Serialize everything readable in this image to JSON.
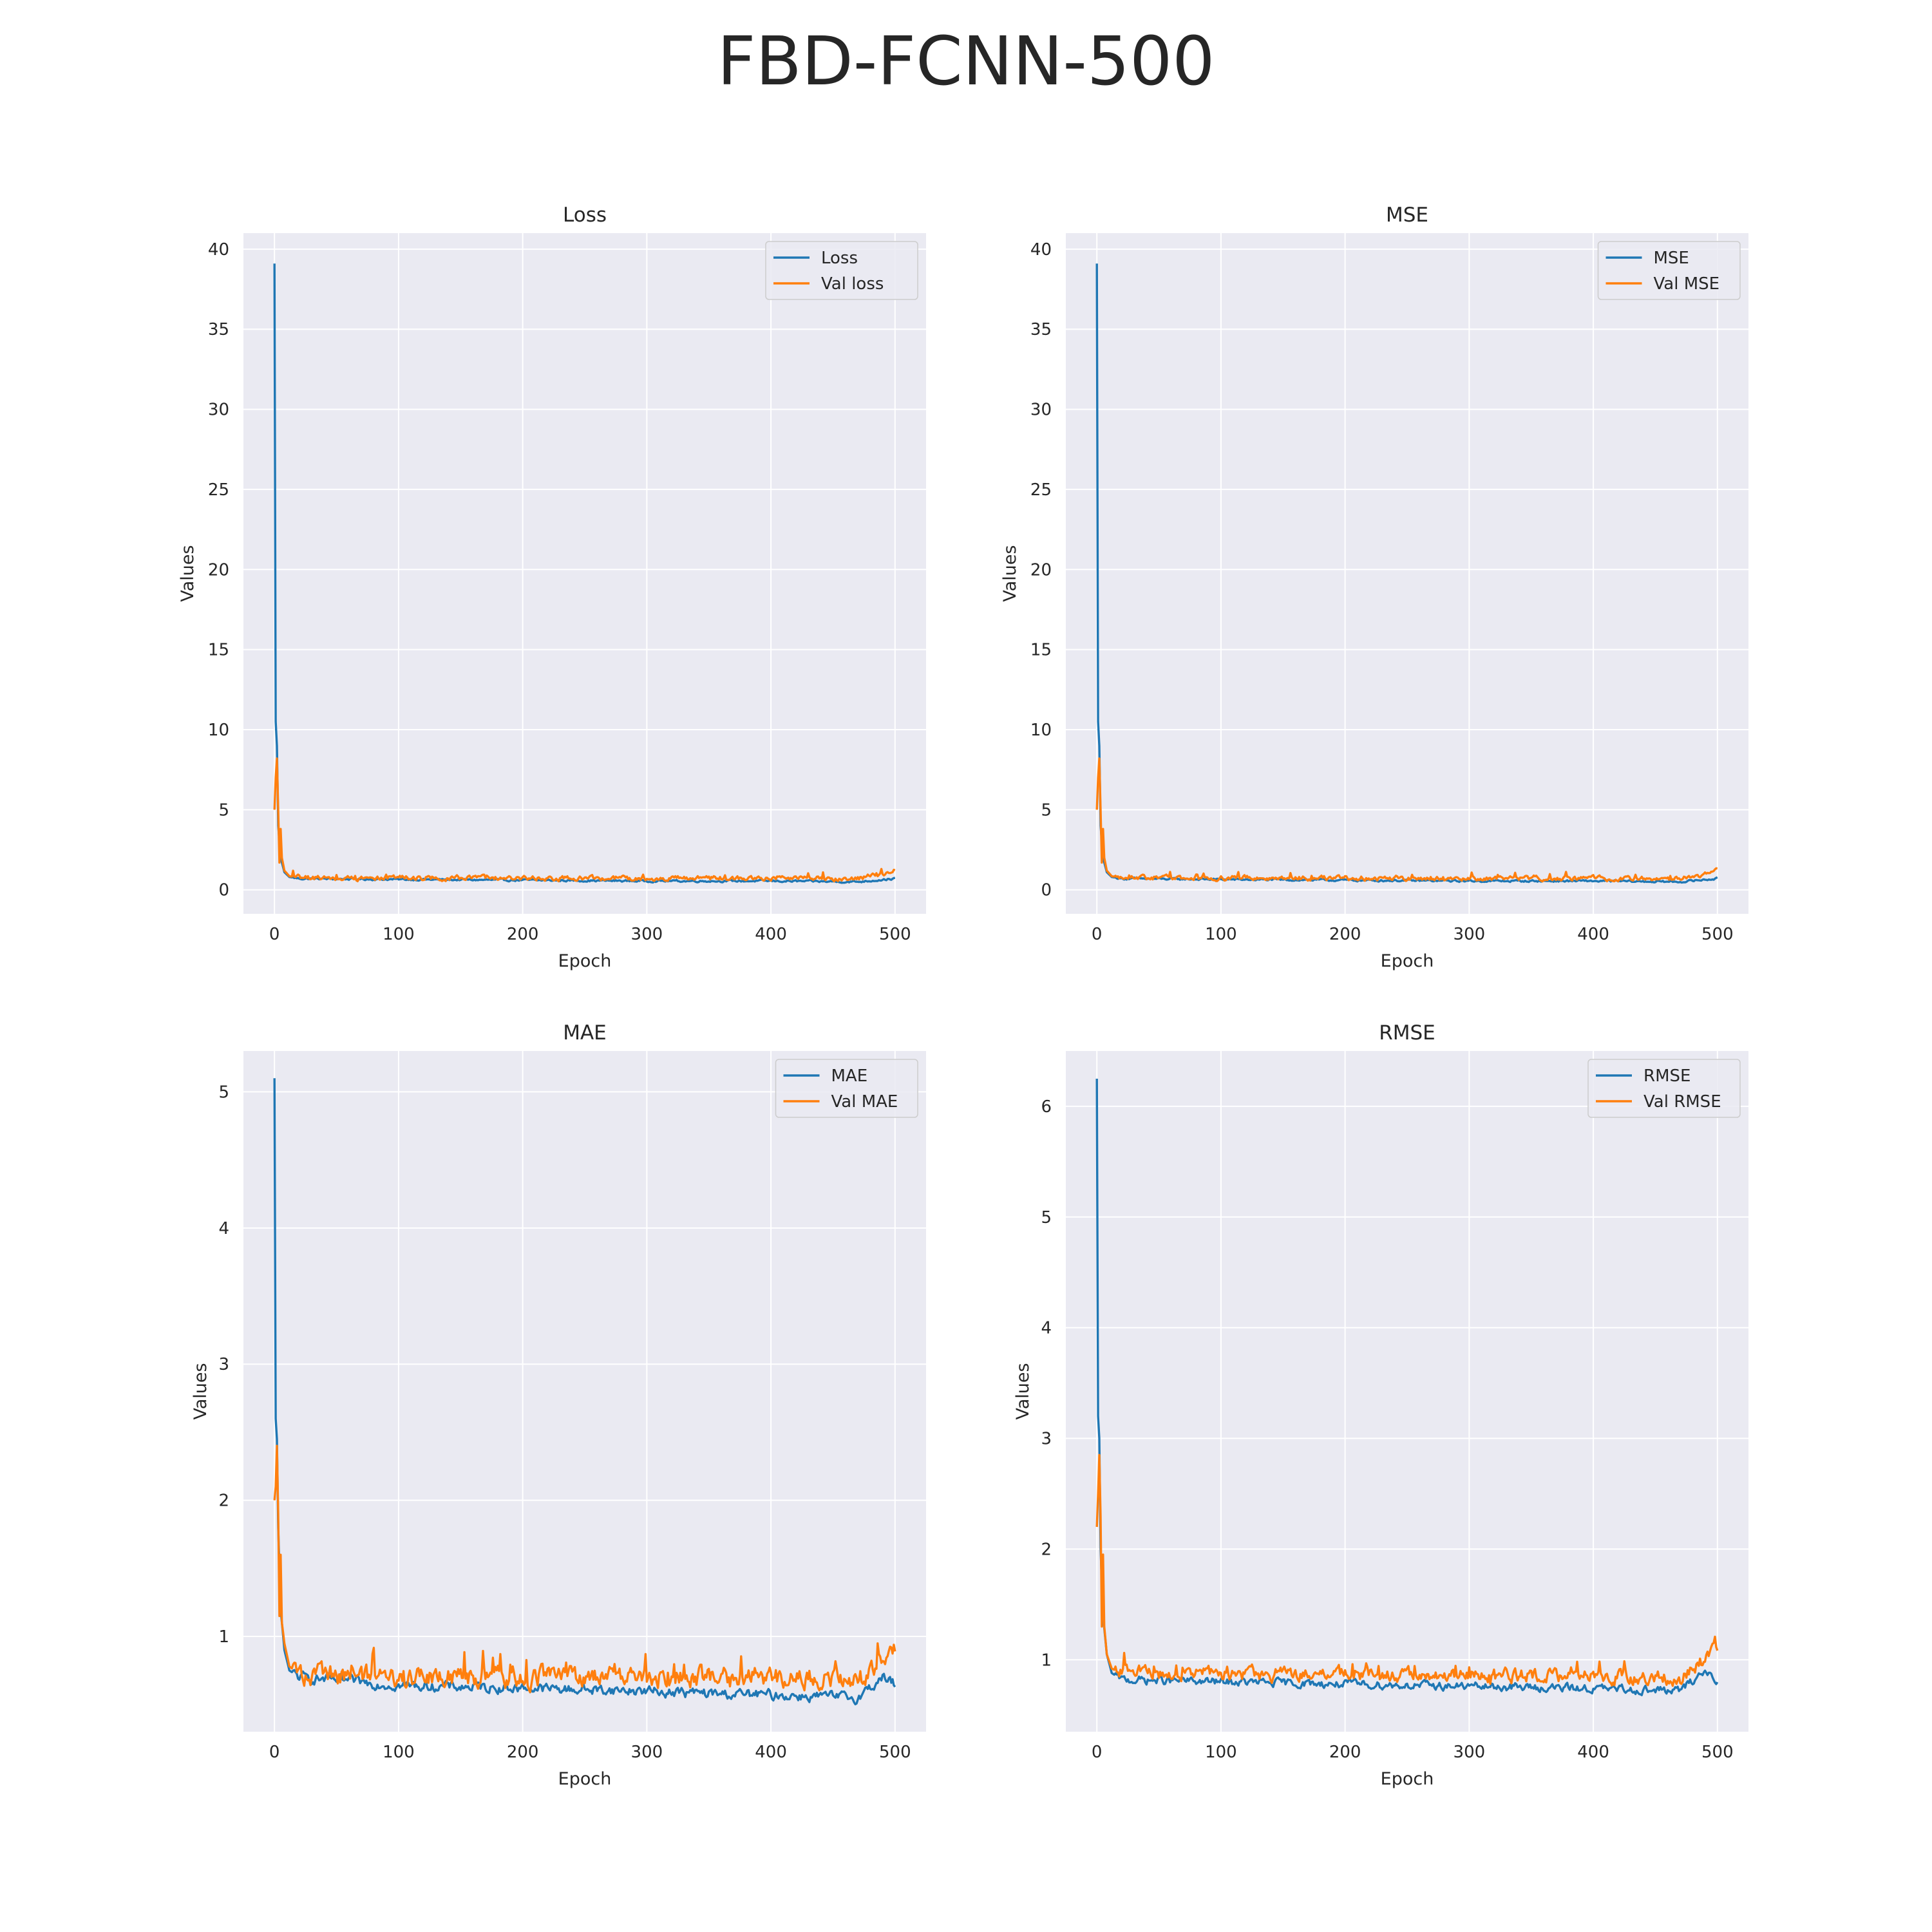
{
  "title": "FBD-FCNN-500",
  "colors": {
    "train": "#1f77b4",
    "val": "#ff7f0e",
    "plot_bg": "#eaeaf2",
    "grid": "#ffffff"
  },
  "chart_data": [
    {
      "type": "line",
      "title": "Loss",
      "xlabel": "Epoch",
      "ylabel": "Values",
      "xlim": [
        -25,
        525
      ],
      "ylim": [
        -1.5,
        41
      ],
      "xticks": [
        0,
        100,
        200,
        300,
        400,
        500
      ],
      "yticks": [
        0,
        5,
        10,
        15,
        20,
        25,
        30,
        35,
        40
      ],
      "grid": true,
      "legend": "top-right",
      "series": [
        {
          "name": "Loss",
          "role": "train",
          "keypoints": [
            [
              0,
              39.1
            ],
            [
              1,
              10.5
            ],
            [
              2,
              9.0
            ],
            [
              3,
              4.0
            ],
            [
              5,
              2.0
            ],
            [
              8,
              1.1
            ],
            [
              12,
              0.8
            ],
            [
              20,
              0.7
            ],
            [
              100,
              0.65
            ],
            [
              200,
              0.6
            ],
            [
              300,
              0.55
            ],
            [
              400,
              0.55
            ],
            [
              470,
              0.5
            ],
            [
              500,
              0.7
            ]
          ],
          "noise": 0.05
        },
        {
          "name": "Val loss",
          "role": "val",
          "keypoints": [
            [
              0,
              5.0
            ],
            [
              1,
              7.0
            ],
            [
              2,
              8.2
            ],
            [
              3,
              5.0
            ],
            [
              4,
              1.7
            ],
            [
              5,
              3.8
            ],
            [
              6,
              2.0
            ],
            [
              8,
              1.2
            ],
            [
              12,
              0.85
            ],
            [
              20,
              0.75
            ],
            [
              100,
              0.75
            ],
            [
              200,
              0.72
            ],
            [
              300,
              0.72
            ],
            [
              400,
              0.72
            ],
            [
              470,
              0.7
            ],
            [
              490,
              0.95
            ],
            [
              500,
              1.2
            ]
          ],
          "noise": 0.12
        }
      ]
    },
    {
      "type": "line",
      "title": "MSE",
      "xlabel": "Epoch",
      "ylabel": "Values",
      "xlim": [
        -25,
        525
      ],
      "ylim": [
        -1.5,
        41
      ],
      "xticks": [
        0,
        100,
        200,
        300,
        400,
        500
      ],
      "yticks": [
        0,
        5,
        10,
        15,
        20,
        25,
        30,
        35,
        40
      ],
      "grid": true,
      "legend": "top-right",
      "series": [
        {
          "name": "MSE",
          "role": "train",
          "keypoints": [
            [
              0,
              39.1
            ],
            [
              1,
              10.5
            ],
            [
              2,
              9.0
            ],
            [
              3,
              4.0
            ],
            [
              5,
              2.0
            ],
            [
              8,
              1.1
            ],
            [
              12,
              0.8
            ],
            [
              20,
              0.7
            ],
            [
              100,
              0.65
            ],
            [
              200,
              0.6
            ],
            [
              300,
              0.55
            ],
            [
              400,
              0.55
            ],
            [
              470,
              0.5
            ],
            [
              500,
              0.7
            ]
          ],
          "noise": 0.05
        },
        {
          "name": "Val MSE",
          "role": "val",
          "keypoints": [
            [
              0,
              5.0
            ],
            [
              1,
              7.0
            ],
            [
              2,
              8.2
            ],
            [
              3,
              5.0
            ],
            [
              4,
              1.7
            ],
            [
              5,
              3.8
            ],
            [
              6,
              2.0
            ],
            [
              8,
              1.2
            ],
            [
              12,
              0.85
            ],
            [
              20,
              0.75
            ],
            [
              100,
              0.75
            ],
            [
              200,
              0.72
            ],
            [
              300,
              0.72
            ],
            [
              400,
              0.72
            ],
            [
              470,
              0.7
            ],
            [
              490,
              0.95
            ],
            [
              500,
              1.2
            ]
          ],
          "noise": 0.12
        }
      ]
    },
    {
      "type": "line",
      "title": "MAE",
      "xlabel": "Epoch",
      "ylabel": "Values",
      "xlim": [
        -25,
        525
      ],
      "ylim": [
        0.3,
        5.3
      ],
      "xticks": [
        0,
        100,
        200,
        300,
        400,
        500
      ],
      "yticks": [
        1,
        2,
        3,
        4,
        5
      ],
      "grid": true,
      "legend": "top-right",
      "series": [
        {
          "name": "MAE",
          "role": "train",
          "keypoints": [
            [
              0,
              5.1
            ],
            [
              1,
              2.6
            ],
            [
              2,
              2.45
            ],
            [
              3,
              1.8
            ],
            [
              5,
              1.2
            ],
            [
              8,
              0.9
            ],
            [
              12,
              0.75
            ],
            [
              20,
              0.7
            ],
            [
              100,
              0.64
            ],
            [
              200,
              0.62
            ],
            [
              300,
              0.6
            ],
            [
              350,
              0.58
            ],
            [
              400,
              0.57
            ],
            [
              470,
              0.55
            ],
            [
              490,
              0.7
            ],
            [
              500,
              0.65
            ]
          ],
          "noise": 0.03
        },
        {
          "name": "Val MAE",
          "role": "val",
          "keypoints": [
            [
              0,
              2.0
            ],
            [
              1,
              2.1
            ],
            [
              2,
              2.4
            ],
            [
              3,
              1.9
            ],
            [
              4,
              1.15
            ],
            [
              5,
              1.6
            ],
            [
              6,
              1.1
            ],
            [
              8,
              0.95
            ],
            [
              12,
              0.78
            ],
            [
              20,
              0.72
            ],
            [
              100,
              0.7
            ],
            [
              200,
              0.7
            ],
            [
              300,
              0.7
            ],
            [
              400,
              0.7
            ],
            [
              470,
              0.68
            ],
            [
              490,
              0.85
            ],
            [
              500,
              0.9
            ]
          ],
          "noise": 0.06
        }
      ]
    },
    {
      "type": "line",
      "title": "RMSE",
      "xlabel": "Epoch",
      "ylabel": "Values",
      "xlim": [
        -25,
        525
      ],
      "ylim": [
        0.35,
        6.5
      ],
      "xticks": [
        0,
        100,
        200,
        300,
        400,
        500
      ],
      "yticks": [
        1,
        2,
        3,
        4,
        5,
        6
      ],
      "grid": true,
      "legend": "top-right",
      "series": [
        {
          "name": "RMSE",
          "role": "train",
          "keypoints": [
            [
              0,
              6.25
            ],
            [
              1,
              3.2
            ],
            [
              2,
              3.0
            ],
            [
              3,
              2.0
            ],
            [
              5,
              1.4
            ],
            [
              8,
              1.05
            ],
            [
              12,
              0.88
            ],
            [
              20,
              0.82
            ],
            [
              100,
              0.8
            ],
            [
              200,
              0.78
            ],
            [
              300,
              0.76
            ],
            [
              400,
              0.74
            ],
            [
              470,
              0.72
            ],
            [
              490,
              0.9
            ],
            [
              500,
              0.82
            ]
          ],
          "noise": 0.03
        },
        {
          "name": "Val RMSE",
          "role": "val",
          "keypoints": [
            [
              0,
              2.2
            ],
            [
              1,
              2.5
            ],
            [
              2,
              2.85
            ],
            [
              3,
              2.3
            ],
            [
              4,
              1.3
            ],
            [
              5,
              1.95
            ],
            [
              6,
              1.3
            ],
            [
              8,
              1.05
            ],
            [
              12,
              0.92
            ],
            [
              20,
              0.88
            ],
            [
              100,
              0.87
            ],
            [
              200,
              0.87
            ],
            [
              300,
              0.86
            ],
            [
              400,
              0.85
            ],
            [
              470,
              0.83
            ],
            [
              490,
              1.0
            ],
            [
              500,
              1.12
            ]
          ],
          "noise": 0.05
        }
      ]
    }
  ]
}
